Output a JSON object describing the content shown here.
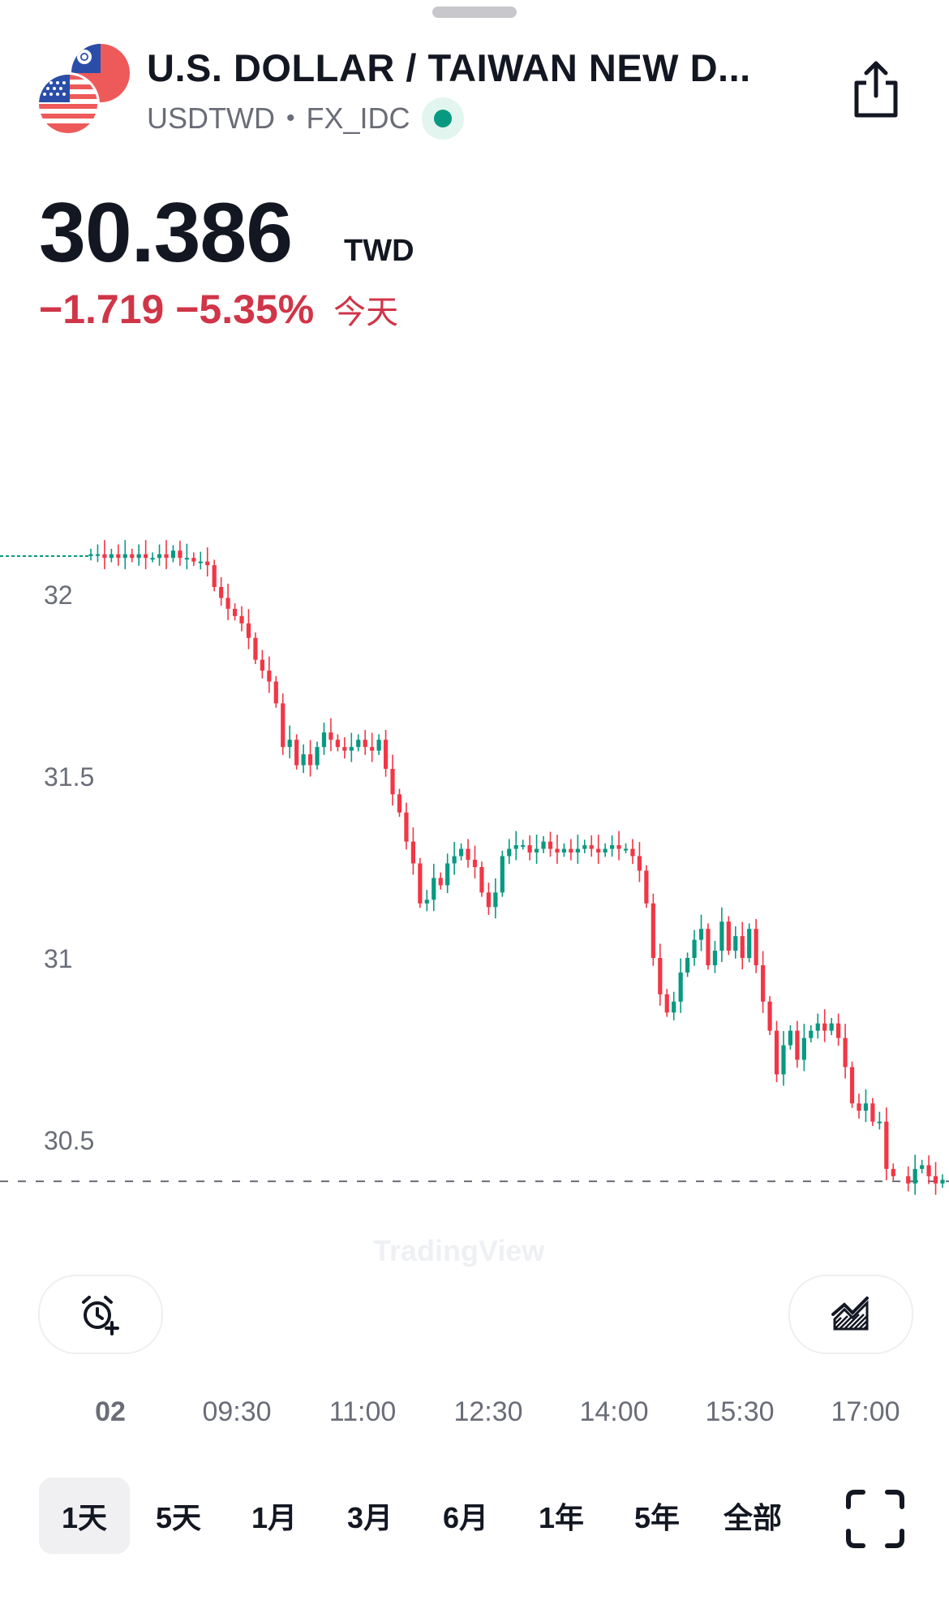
{
  "header": {
    "title": "U.S. DOLLAR / TAIWAN NEW D...",
    "symbol": "USDTWD",
    "exchange": "FX_IDC",
    "separator": "•",
    "live_status_color": "#089981"
  },
  "quote": {
    "price": "30.386",
    "currency": "TWD",
    "change": "−1.719",
    "change_percent": "−5.35%",
    "period_label": "今天",
    "change_color": "#d03548"
  },
  "chart_data": {
    "type": "candlestick",
    "y_ticks": [
      "32",
      "31.5",
      "31",
      "30.5"
    ],
    "x_ticks": [
      "02",
      "09:30",
      "11:00",
      "12:30",
      "14:00",
      "15:30",
      "17:00"
    ],
    "prev_close": 32.105,
    "current_price": 30.386,
    "up_color": "#089981",
    "down_color": "#f23645",
    "grid": false,
    "watermark": "TradingView",
    "closes": [
      32.11,
      32.11,
      32.1,
      32.11,
      32.1,
      32.11,
      32.1,
      32.11,
      32.1,
      32.1,
      32.11,
      32.1,
      32.12,
      32.1,
      32.1,
      32.09,
      32.09,
      32.08,
      32.02,
      31.99,
      31.96,
      31.94,
      31.92,
      31.88,
      31.82,
      31.79,
      31.76,
      31.7,
      31.58,
      31.6,
      31.53,
      31.56,
      31.53,
      31.58,
      31.62,
      31.6,
      31.58,
      31.57,
      31.58,
      31.6,
      31.58,
      31.57,
      31.6,
      31.52,
      31.45,
      31.4,
      31.32,
      31.26,
      31.15,
      31.16,
      31.22,
      31.2,
      31.26,
      31.28,
      31.3,
      31.27,
      31.25,
      31.18,
      31.14,
      31.18,
      31.28,
      31.3,
      31.31,
      31.31,
      31.29,
      31.3,
      31.32,
      31.3,
      31.29,
      31.3,
      31.29,
      31.3,
      31.31,
      31.3,
      31.29,
      31.3,
      31.31,
      31.3,
      31.3,
      31.28,
      31.24,
      31.15,
      31.0,
      30.9,
      30.85,
      30.88,
      30.96,
      31.0,
      31.05,
      31.08,
      30.98,
      31.02,
      31.1,
      31.02,
      31.06,
      31.0,
      31.08,
      30.98,
      30.88,
      30.8,
      30.68,
      30.76,
      30.8,
      30.72,
      30.78,
      30.8,
      30.82,
      30.8,
      30.82,
      30.78,
      30.7,
      30.6,
      30.58,
      30.6,
      30.55,
      30.55,
      30.42,
      30.4,
      30.38,
      30.42,
      30.43,
      30.4,
      30.38,
      30.39
    ],
    "gap_after_index": 117
  },
  "toolbar": {
    "alert_icon": "alarm-plus-icon",
    "indicators_icon": "chart-indicators-icon"
  },
  "ranges": [
    "1天",
    "5天",
    "1月",
    "3月",
    "6月",
    "1年",
    "5年",
    "全部"
  ],
  "active_range": "1天",
  "fullscreen_icon": "fullscreen-icon"
}
